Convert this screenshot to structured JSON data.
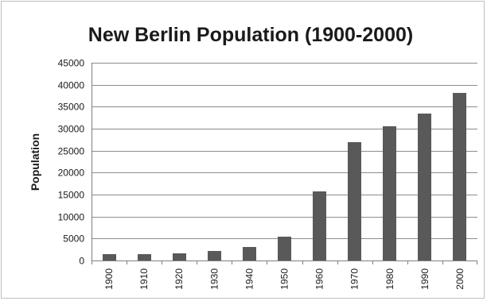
{
  "chart_data": {
    "type": "bar",
    "title": "New Berlin Population (1900-2000)",
    "xlabel": "",
    "ylabel": "Population",
    "categories": [
      "1900",
      "1910",
      "1920",
      "1930",
      "1940",
      "1950",
      "1960",
      "1970",
      "1980",
      "1990",
      "2000"
    ],
    "values": [
      1500,
      1500,
      1700,
      2200,
      3000,
      5400,
      15800,
      27000,
      30500,
      33500,
      38200
    ],
    "ylim": [
      0,
      45000
    ],
    "yticks": [
      "0",
      "5000",
      "10000",
      "15000",
      "20000",
      "25000",
      "30000",
      "35000",
      "40000",
      "45000"
    ],
    "grid": true,
    "legend": "none",
    "bar_color": "#595959"
  }
}
